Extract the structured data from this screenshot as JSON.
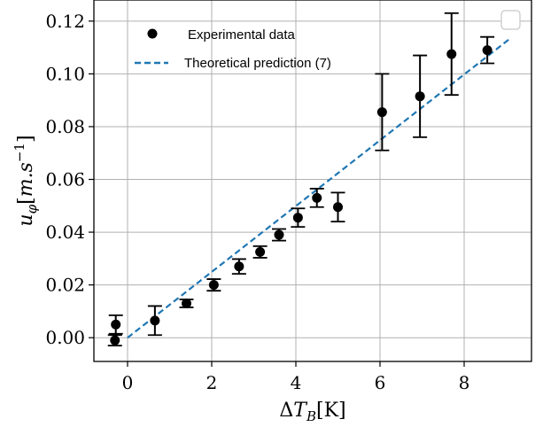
{
  "chart_data": {
    "type": "scatter",
    "xlabel": "ΔT_B[K]",
    "ylabel": "u_φ[m.s⁻¹]",
    "xlim": [
      -0.8,
      9.6
    ],
    "ylim": [
      -0.009,
      0.128
    ],
    "xticks": [
      0,
      2,
      4,
      6,
      8
    ],
    "xtick_labels": [
      "0",
      "2",
      "4",
      "6",
      "8"
    ],
    "yticks": [
      0.0,
      0.02,
      0.04,
      0.06,
      0.08,
      0.1,
      0.12
    ],
    "ytick_labels": [
      "0.00",
      "0.02",
      "0.04",
      "0.06",
      "0.08",
      "0.10",
      "0.12"
    ],
    "grid": true,
    "legend_position": "top-left",
    "series": [
      {
        "name": "Experimental data",
        "kind": "errorbar",
        "color": "#000000",
        "points": [
          {
            "x": -0.3,
            "y": -0.001,
            "yerr": 0.002
          },
          {
            "x": -0.28,
            "y": 0.005,
            "yerr": 0.0035
          },
          {
            "x": 0.65,
            "y": 0.0065,
            "yerr": 0.0055
          },
          {
            "x": 1.4,
            "y": 0.013,
            "yerr": 0.0015
          },
          {
            "x": 2.05,
            "y": 0.02,
            "yerr": 0.0022
          },
          {
            "x": 2.65,
            "y": 0.027,
            "yerr": 0.0028
          },
          {
            "x": 3.15,
            "y": 0.0325,
            "yerr": 0.0022
          },
          {
            "x": 3.6,
            "y": 0.039,
            "yerr": 0.0022
          },
          {
            "x": 4.05,
            "y": 0.0455,
            "yerr": 0.0035
          },
          {
            "x": 4.5,
            "y": 0.053,
            "yerr": 0.0035
          },
          {
            "x": 5.0,
            "y": 0.0495,
            "yerr": 0.0055
          },
          {
            "x": 6.05,
            "y": 0.0855,
            "yerr": 0.0145
          },
          {
            "x": 6.95,
            "y": 0.0915,
            "yerr": 0.0155
          },
          {
            "x": 7.7,
            "y": 0.1075,
            "yerr": 0.0155
          },
          {
            "x": 8.55,
            "y": 0.109,
            "yerr": 0.005
          }
        ]
      },
      {
        "name": "Theoretical prediction (7)",
        "kind": "line",
        "style": "dashed",
        "color": "#1f77b4",
        "x": [
          0,
          9.1
        ],
        "y": [
          0,
          0.1135
        ]
      }
    ]
  }
}
